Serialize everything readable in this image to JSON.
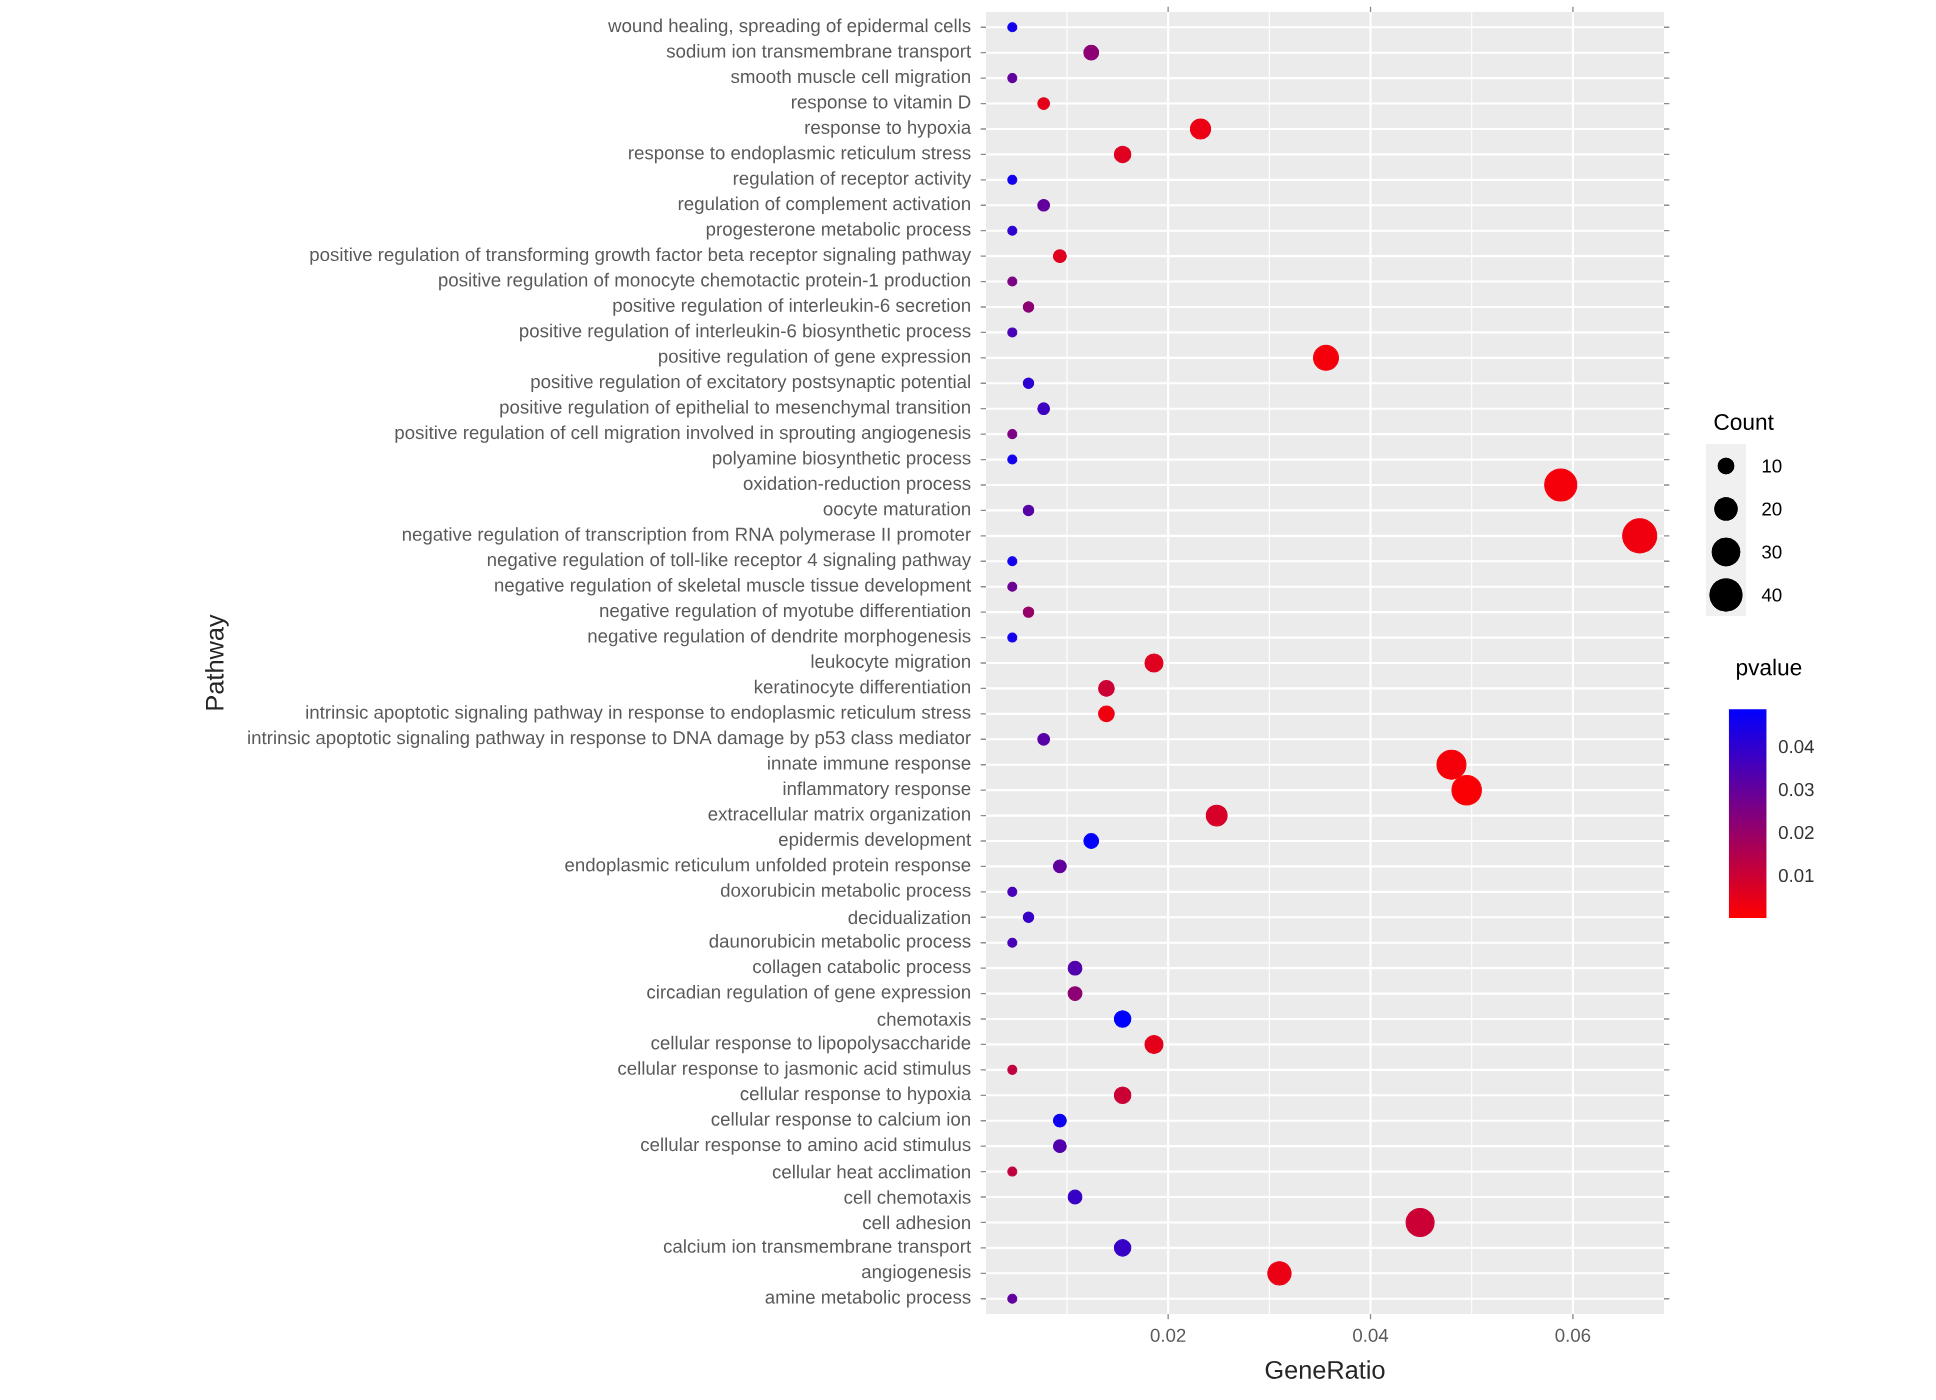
{
  "chart_data": {
    "type": "scatter",
    "orientation": "horizontal",
    "xlabel": "GeneRatio",
    "ylabel": "Pathway",
    "legend_title": "Count",
    "clabel": "pvalue",
    "categories": [
      "wound healing, spreading of epidermal cells",
      "sodium ion transmembrane transport",
      "smooth muscle cell migration",
      "response to vitamin D",
      "response to hypoxia",
      "response to endoplasmic reticulum stress",
      "regulation of receptor activity",
      "regulation of complement activation",
      "progesterone metabolic process",
      "positive regulation of transforming growth factor beta receptor signaling pathway",
      "positive regulation of monocyte chemotactic protein-1 production",
      "positive regulation of interleukin-6 secretion",
      "positive regulation of interleukin-6 biosynthetic process",
      "positive regulation of gene expression",
      "positive regulation of excitatory postsynaptic potential",
      "positive regulation of epithelial to mesenchymal transition",
      "positive regulation of cell migration involved in sprouting angiogenesis",
      "polyamine biosynthetic process",
      "oxidation-reduction process",
      "oocyte maturation",
      "negative regulation of transcription from RNA polymerase II promoter",
      "negative regulation of toll-like receptor 4 signaling pathway",
      "negative regulation of skeletal muscle tissue development",
      "negative regulation of myotube differentiation",
      "negative regulation of dendrite morphogenesis",
      "leukocyte migration",
      "keratinocyte differentiation",
      "intrinsic apoptotic signaling pathway in response to endoplasmic reticulum stress",
      "intrinsic apoptotic signaling pathway in response to DNA damage by p53 class mediator",
      "innate immune response",
      "inflammatory response",
      "extracellular matrix organization",
      "epidermis development",
      "endoplasmic reticulum unfolded protein response",
      "doxorubicin metabolic process",
      "decidualization",
      "daunorubicin metabolic process",
      "collagen catabolic process",
      "circadian regulation of gene expression",
      "chemotaxis",
      "cellular response to lipopolysaccharide",
      "cellular response to jasmonic acid stimulus",
      "cellular response to hypoxia",
      "cellular response to calcium ion",
      "cellular response to amino acid stimulus",
      "cellular heat acclimation",
      "cell chemotaxis",
      "cell adhesion",
      "calcium ion transmembrane transport",
      "angiogenesis",
      "amine metabolic process"
    ],
    "values": [
      0.0046,
      0.0124,
      0.0046,
      0.0077,
      0.0232,
      0.0155,
      0.0046,
      0.0077,
      0.0046,
      0.0093,
      0.0046,
      0.0062,
      0.0046,
      0.0356,
      0.0062,
      0.0077,
      0.0046,
      0.0046,
      0.0588,
      0.0062,
      0.0666,
      0.0046,
      0.0046,
      0.0062,
      0.0046,
      0.0186,
      0.0139,
      0.0139,
      0.0077,
      0.048,
      0.0495,
      0.0248,
      0.0124,
      0.0093,
      0.0046,
      0.0062,
      0.0046,
      0.0108,
      0.0108,
      0.0155,
      0.0186,
      0.0046,
      0.0155,
      0.0093,
      0.0093,
      0.0046,
      0.0108,
      0.0449,
      0.0155,
      0.031,
      0.0046
    ],
    "sizes": [
      3,
      8,
      3,
      5,
      15,
      10,
      3,
      5,
      3,
      6,
      3,
      4,
      3,
      23,
      4,
      5,
      3,
      3,
      38,
      4,
      43,
      3,
      3,
      4,
      3,
      12,
      9,
      9,
      5,
      31,
      32,
      16,
      8,
      6,
      3,
      4,
      3,
      7,
      7,
      10,
      12,
      3,
      10,
      6,
      6,
      3,
      7,
      29,
      10,
      20,
      3
    ],
    "cvalues": [
      0.045,
      0.022,
      0.03,
      0.005,
      0.004,
      0.006,
      0.045,
      0.03,
      0.04,
      0.006,
      0.025,
      0.022,
      0.035,
      0.002,
      0.04,
      0.037,
      0.025,
      0.045,
      0.002,
      0.032,
      0.003,
      0.045,
      0.028,
      0.02,
      0.045,
      0.006,
      0.01,
      0.003,
      0.032,
      0.002,
      0.001,
      0.008,
      0.048,
      0.03,
      0.035,
      0.038,
      0.035,
      0.033,
      0.022,
      0.049,
      0.005,
      0.012,
      0.01,
      0.046,
      0.033,
      0.012,
      0.038,
      0.01,
      0.038,
      0.004,
      0.03
    ],
    "size_legend": [
      10,
      20,
      30,
      40
    ],
    "clim": [
      0.0001,
      0.049
    ],
    "cticks": [
      0.01,
      0.02,
      0.03,
      0.04
    ],
    "xlim": [
      0.002,
      0.069
    ],
    "xticks": [
      0.02,
      0.04,
      0.06
    ],
    "grid": true,
    "marker": "circle"
  }
}
